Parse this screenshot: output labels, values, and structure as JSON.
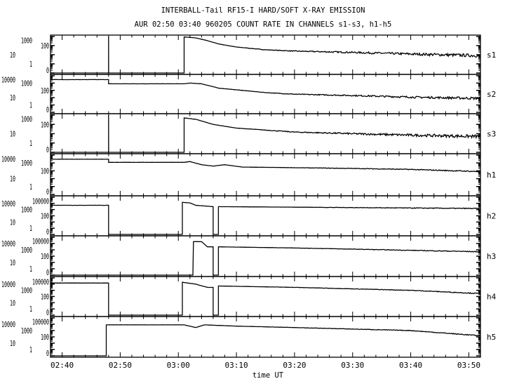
{
  "chart_data": {
    "type": "line",
    "title": "INTERBALL-Tail RF15-I HARD/SOFT X-RAY EMISSION",
    "subtitle": "AUR 02:50 03:40 960205  COUNT RATE IN CHANNELS s1-s3, h1-h5",
    "xlabel": "time UT",
    "x_unit": "minutes of day UT",
    "xlim": [
      158,
      232
    ],
    "x_ticks": [
      160,
      170,
      180,
      190,
      200,
      210,
      220,
      230
    ],
    "x_tick_labels": [
      "02:40",
      "02:50",
      "03:00",
      "03:10",
      "03:20",
      "03:30",
      "03:40",
      "03:50"
    ],
    "y_scale": "log (0 at bottom)",
    "panels": [
      {
        "name": "s1",
        "y_tick_labels": [
          "0",
          "1",
          "10",
          "100",
          "1000"
        ],
        "ymax_exp": 3,
        "points": [
          [
            158,
            0
          ],
          [
            168,
            0
          ],
          [
            168,
            1000
          ],
          [
            168.01,
            0
          ],
          [
            181,
            0
          ],
          [
            181,
            900
          ],
          [
            183,
            700
          ],
          [
            185,
            350
          ],
          [
            187,
            150
          ],
          [
            190,
            70
          ],
          [
            195,
            35
          ],
          [
            200,
            25
          ],
          [
            210,
            18
          ],
          [
            220,
            12
          ],
          [
            232,
            8
          ]
        ]
      },
      {
        "name": "s2",
        "y_tick_labels": [
          "0",
          "1",
          "10",
          "100",
          "1000",
          "10000"
        ],
        "ymax_exp": 4,
        "points": [
          [
            158,
            3000
          ],
          [
            168,
            3000
          ],
          [
            168,
            800
          ],
          [
            181,
            800
          ],
          [
            182,
            1000
          ],
          [
            184,
            800
          ],
          [
            187,
            200
          ],
          [
            190,
            120
          ],
          [
            195,
            50
          ],
          [
            200,
            30
          ],
          [
            210,
            20
          ],
          [
            220,
            12
          ],
          [
            232,
            8
          ]
        ]
      },
      {
        "name": "s3",
        "y_tick_labels": [
          "0",
          "1",
          "10",
          "100",
          "1000"
        ],
        "ymax_exp": 3,
        "points": [
          [
            158,
            0
          ],
          [
            168,
            0
          ],
          [
            168,
            1000
          ],
          [
            168.01,
            0
          ],
          [
            181,
            0
          ],
          [
            181,
            500
          ],
          [
            183,
            350
          ],
          [
            186,
            100
          ],
          [
            190,
            40
          ],
          [
            200,
            15
          ],
          [
            210,
            10
          ],
          [
            220,
            7
          ],
          [
            232,
            5
          ]
        ]
      },
      {
        "name": "h1",
        "y_tick_labels": [
          "0",
          "1",
          "10",
          "100",
          "1000",
          "10000"
        ],
        "ymax_exp": 4,
        "points": [
          [
            158,
            3000
          ],
          [
            168,
            3000
          ],
          [
            168,
            1200
          ],
          [
            181,
            1200
          ],
          [
            182,
            1500
          ],
          [
            184,
            600
          ],
          [
            186,
            400
          ],
          [
            188,
            600
          ],
          [
            191,
            300
          ],
          [
            200,
            250
          ],
          [
            210,
            200
          ],
          [
            220,
            150
          ],
          [
            232,
            80
          ]
        ]
      },
      {
        "name": "h2",
        "y_tick_labels": [
          "0",
          "1",
          "10",
          "100",
          "1000",
          "10000",
          "100000"
        ],
        "ymax_exp": 5,
        "points": [
          [
            158,
            5000
          ],
          [
            168,
            5000
          ],
          [
            168,
            0
          ],
          [
            180.7,
            0
          ],
          [
            180.7,
            15000
          ],
          [
            182,
            12000
          ],
          [
            183,
            5000
          ],
          [
            186,
            3000
          ],
          [
            186,
            0
          ],
          [
            186.9,
            0
          ],
          [
            186.9,
            3000
          ],
          [
            200,
            2500
          ],
          [
            232,
            1500
          ]
        ]
      },
      {
        "name": "h3",
        "y_tick_labels": [
          "0",
          "1",
          "10",
          "100",
          "1000",
          "10000",
          "100000"
        ],
        "ymax_exp": 5,
        "points": [
          [
            158,
            0
          ],
          [
            182.5,
            0
          ],
          [
            182.6,
            20000
          ],
          [
            184,
            20000
          ],
          [
            185,
            3000
          ],
          [
            186,
            3000
          ],
          [
            186,
            0
          ],
          [
            186.9,
            0
          ],
          [
            186.9,
            3000
          ],
          [
            200,
            2000
          ],
          [
            232,
            500
          ]
        ]
      },
      {
        "name": "h4",
        "y_tick_labels": [
          "0",
          "1",
          "10",
          "100",
          "1000",
          "10000",
          "100000"
        ],
        "ymax_exp": 5,
        "points": [
          [
            158,
            15000
          ],
          [
            168,
            15000
          ],
          [
            168,
            0
          ],
          [
            180.7,
            0
          ],
          [
            180.7,
            20000
          ],
          [
            183,
            10000
          ],
          [
            185,
            3000
          ],
          [
            186,
            3000
          ],
          [
            186,
            0
          ],
          [
            186.9,
            0
          ],
          [
            186.9,
            5000
          ],
          [
            200,
            3000
          ],
          [
            220,
            1000
          ],
          [
            232,
            300
          ]
        ]
      },
      {
        "name": "h5",
        "y_tick_labels": [
          "0",
          "1",
          "10",
          "100",
          "1000",
          "10000",
          "100000"
        ],
        "ymax_exp": 5,
        "points": [
          [
            158,
            0
          ],
          [
            167.6,
            0
          ],
          [
            167.6,
            8000
          ],
          [
            181,
            8000
          ],
          [
            183,
            3000
          ],
          [
            184.5,
            8000
          ],
          [
            190,
            5000
          ],
          [
            200,
            3000
          ],
          [
            220,
            1000
          ],
          [
            232,
            150
          ]
        ]
      }
    ],
    "grid": false
  }
}
